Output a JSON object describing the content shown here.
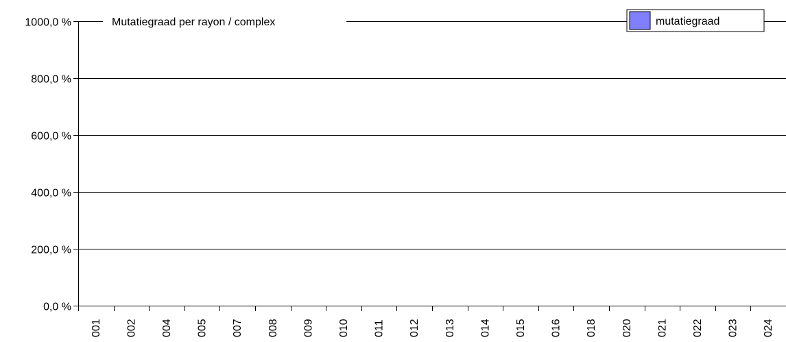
{
  "chart_data": {
    "type": "bar",
    "title": "Mutatiegraad per rayon / complex",
    "xlabel": "",
    "ylabel": "",
    "categories": [
      "001",
      "002",
      "004",
      "005",
      "007",
      "008",
      "009",
      "010",
      "011",
      "012",
      "013",
      "014",
      "015",
      "016",
      "018",
      "020",
      "021",
      "022",
      "023",
      "024"
    ],
    "series": [
      {
        "name": "mutatiegraad",
        "values": [
          0,
          0,
          0,
          0,
          0,
          0,
          0,
          0,
          0,
          0,
          0,
          0,
          0,
          0,
          0,
          0,
          0,
          0,
          0,
          0
        ],
        "color": "#8080ff"
      }
    ],
    "ylim": [
      0,
      1000
    ],
    "yticks": [
      0,
      200,
      400,
      600,
      800,
      1000
    ],
    "ytick_labels": [
      "0,0 %",
      "200,0 %",
      "400,0 %",
      "600,0 %",
      "800,0 %",
      "1000,0 %"
    ],
    "grid": true,
    "legend": "top-right"
  }
}
